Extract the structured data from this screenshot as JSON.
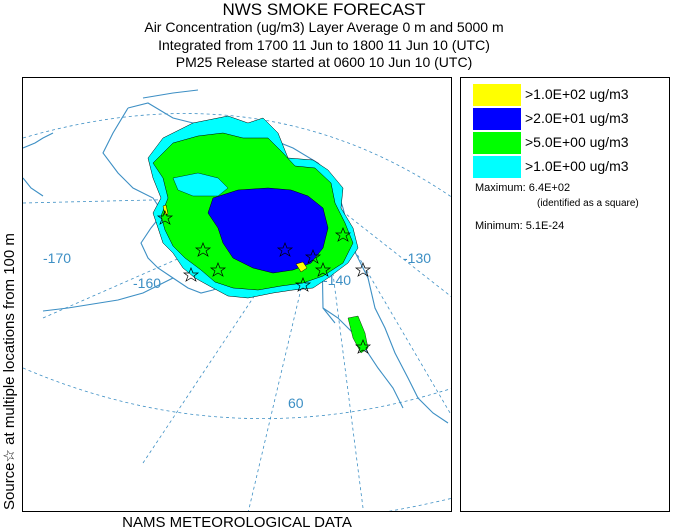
{
  "header": {
    "title": "NWS SMOKE FORECAST",
    "line2": "Air Concentration (ug/m3) Layer Average    0 m and  5000 m",
    "line3": "Integrated from 1700 11 Jun to 1800 11 Jun 10 (UTC)",
    "line4": "PM25 Release started at 0600 10 Jun 10 (UTC)"
  },
  "side_label": "Source☆  at multiple locations    from   100 m",
  "footer": "NAMS METEOROLOGICAL DATA",
  "map": {
    "longitude_labels": [
      "-170",
      "-160",
      "-140",
      "-130"
    ],
    "latitude_labels": [
      "60"
    ]
  },
  "legend": {
    "items": [
      {
        "label": ">1.0E+02 ug/m3",
        "color": "#ffff00"
      },
      {
        "label": ">2.0E+01 ug/m3",
        "color": "#0000ff"
      },
      {
        "label": ">5.0E+00 ug/m3",
        "color": "#00ff00"
      },
      {
        "label": ">1.0E+00 ug/m3",
        "color": "#00ffff"
      }
    ],
    "maximum": "Maximum: 6.4E+02",
    "maximum_note": "(identified as a square)",
    "minimum": "Minimum: 5.1E-24"
  },
  "colors": {
    "map_lines": "#3d8fc4",
    "smoke_yellow": "#ffff00",
    "smoke_blue": "#0000ff",
    "smoke_green": "#00ff00",
    "smoke_cyan": "#00ffff"
  }
}
